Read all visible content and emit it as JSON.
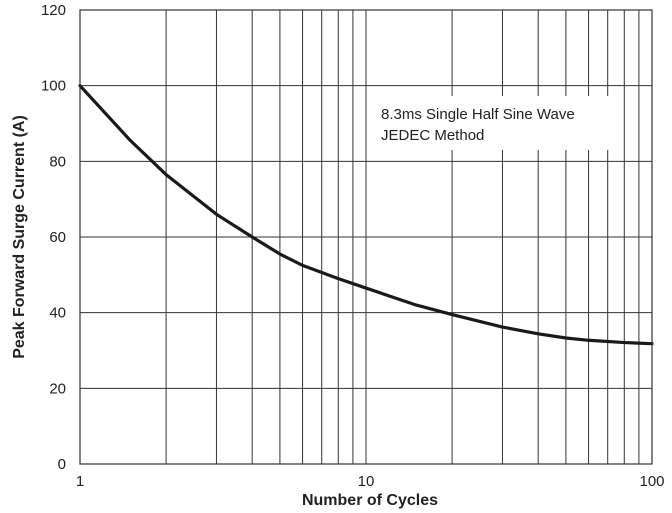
{
  "chart_data": {
    "type": "line",
    "title": "",
    "xlabel": "Number of Cycles",
    "ylabel": "Peak Forward Surge Current (A)",
    "x_scale": "log",
    "xlim": [
      1,
      100
    ],
    "ylim": [
      0,
      120
    ],
    "x_ticks": [
      1,
      10,
      100
    ],
    "x_tick_labels": [
      "1",
      "10",
      "100"
    ],
    "y_ticks": [
      0,
      20,
      40,
      60,
      80,
      100,
      120
    ],
    "y_tick_labels": [
      "0",
      "20",
      "40",
      "60",
      "80",
      "100",
      "120"
    ],
    "grid": true,
    "grid_x_minor": [
      2,
      3,
      4,
      5,
      6,
      7,
      8,
      9,
      20,
      30,
      40,
      50,
      60,
      70,
      80,
      90
    ],
    "legend": "none",
    "annotation_lines": [
      "8.3ms Single Half Sine Wave",
      "JEDEC Method"
    ],
    "series": [
      {
        "color": "#1a1a1a",
        "x": [
          1,
          1.5,
          2,
          3,
          4,
          5,
          6,
          8,
          10,
          15,
          20,
          30,
          40,
          50,
          60,
          80,
          100
        ],
        "y": [
          100,
          85.5,
          76.5,
          66,
          60,
          55.5,
          52.5,
          49,
          46.5,
          42,
          39.5,
          36.2,
          34.4,
          33.3,
          32.7,
          32.1,
          31.8
        ]
      }
    ]
  }
}
